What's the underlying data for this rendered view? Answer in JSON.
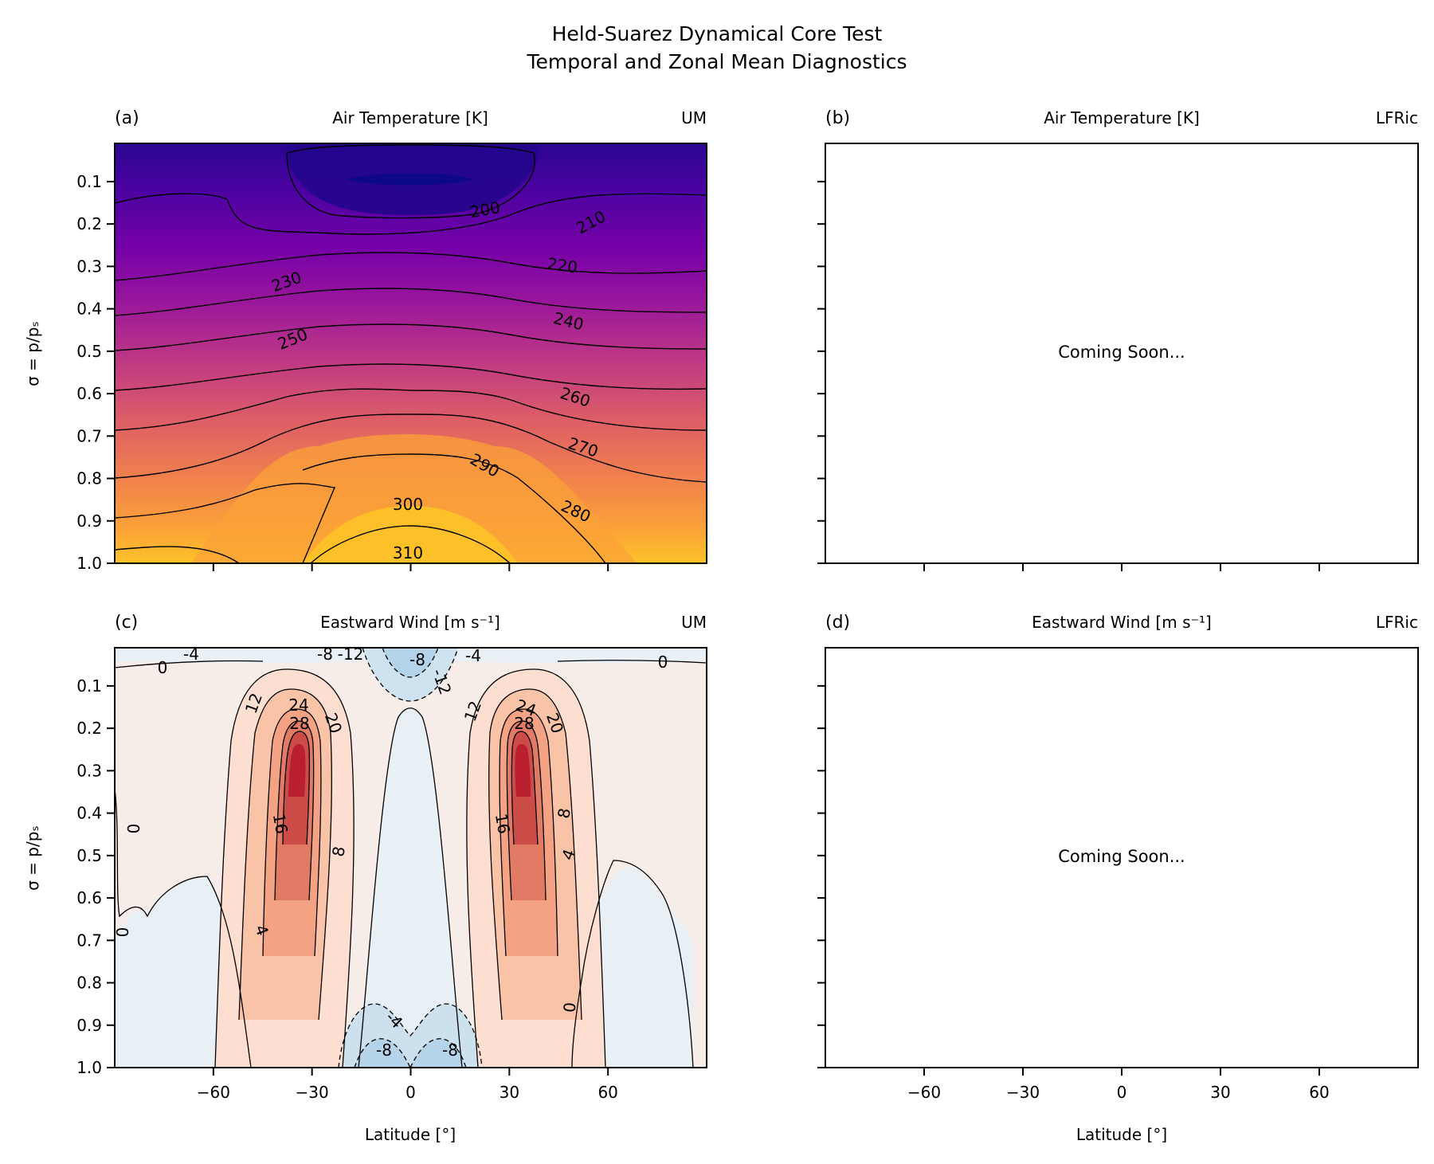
{
  "suptitle": {
    "line1": "Held-Suarez Dynamical Core Test",
    "line2": "Temporal and Zonal Mean Diagnostics"
  },
  "panels": {
    "a": {
      "label": "(a)",
      "title": "Air Temperature [K]",
      "model": "UM"
    },
    "b": {
      "label": "(b)",
      "title": "Air Temperature [K]",
      "model": "LFRic",
      "placeholder": "Coming Soon..."
    },
    "c": {
      "label": "(c)",
      "title": "Eastward Wind [m s⁻¹]",
      "model": "UM"
    },
    "d": {
      "label": "(d)",
      "title": "Eastward Wind [m s⁻¹]",
      "model": "LFRic",
      "placeholder": "Coming Soon..."
    }
  },
  "axes": {
    "ylabel": "σ = p/pₛ",
    "xlabel": "Latitude [°]",
    "yticks": [
      "0.1",
      "0.2",
      "0.3",
      "0.4",
      "0.5",
      "0.6",
      "0.7",
      "0.8",
      "0.9",
      "1.0"
    ],
    "xticks": [
      "−60",
      "−30",
      "0",
      "30",
      "60"
    ]
  },
  "colors": {
    "temperature_cmap": "plasma",
    "wind_cmap": "RdBu_r",
    "contour_line": "#000000"
  },
  "chart_data": [
    {
      "id": "a",
      "type": "heatmap",
      "subtype": "filled-contour",
      "title": "Air Temperature [K]",
      "xlabel": "",
      "ylabel": "σ = p/pₛ",
      "xlim": [
        -90,
        90
      ],
      "ylim": [
        1.0,
        0.01
      ],
      "y_inverted": true,
      "xticks": [
        -60,
        -30,
        0,
        30,
        60
      ],
      "yticks": [
        0.1,
        0.2,
        0.3,
        0.4,
        0.5,
        0.6,
        0.7,
        0.8,
        0.9,
        1.0
      ],
      "contour_levels": [
        200,
        210,
        220,
        230,
        240,
        250,
        260,
        270,
        280,
        290,
        300,
        310
      ],
      "contour_labels": [
        "200",
        "210",
        "220",
        "230",
        "240",
        "250",
        "260",
        "270",
        "280",
        "290",
        "300",
        "310"
      ],
      "colormap": "plasma",
      "grid": false
    },
    {
      "id": "b",
      "type": "heatmap",
      "title": "Air Temperature [K]",
      "empty": true,
      "annotation": "Coming Soon...",
      "xlim": [
        -90,
        90
      ],
      "ylim": [
        1.0,
        0.01
      ]
    },
    {
      "id": "c",
      "type": "heatmap",
      "subtype": "filled-contour",
      "title": "Eastward Wind [m s⁻¹]",
      "xlabel": "Latitude [°]",
      "ylabel": "σ = p/pₛ",
      "xlim": [
        -90,
        90
      ],
      "ylim": [
        1.0,
        0.01
      ],
      "y_inverted": true,
      "xticks": [
        -60,
        -30,
        0,
        30,
        60
      ],
      "yticks": [
        0.1,
        0.2,
        0.3,
        0.4,
        0.5,
        0.6,
        0.7,
        0.8,
        0.9,
        1.0
      ],
      "contour_levels": [
        -12,
        -8,
        -4,
        0,
        4,
        8,
        12,
        16,
        20,
        24,
        28
      ],
      "contour_labels": [
        "-12",
        "-8",
        "-4",
        "0",
        "4",
        "8",
        "12",
        "16",
        "20",
        "24",
        "28"
      ],
      "jets": [
        {
          "lat": -33,
          "sigma": 0.25,
          "max_wind": 30
        },
        {
          "lat": 33,
          "sigma": 0.25,
          "max_wind": 30
        }
      ],
      "colormap": "RdBu_r",
      "grid": false
    },
    {
      "id": "d",
      "type": "heatmap",
      "title": "Eastward Wind [m s⁻¹]",
      "empty": true,
      "annotation": "Coming Soon...",
      "xlabel": "Latitude [°]",
      "xlim": [
        -90,
        90
      ],
      "ylim": [
        1.0,
        0.01
      ]
    }
  ]
}
